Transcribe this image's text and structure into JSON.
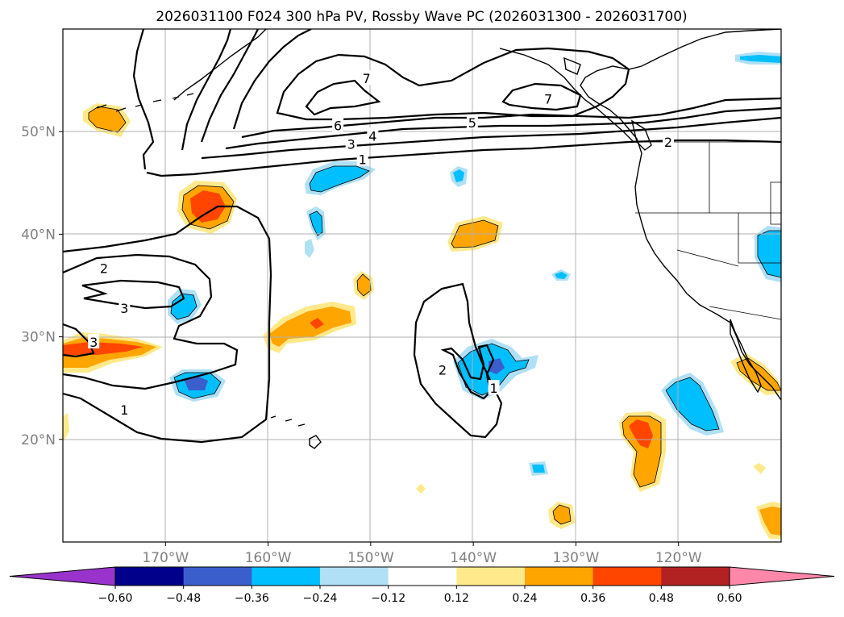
{
  "title": "2026031100 F024 300 hPa PV, Rossby Wave PC (2026031300 - 2026031700)",
  "chart_data": {
    "type": "contour-map",
    "projection": "PlateCarree",
    "lon_range": [
      -180,
      -110
    ],
    "lat_range": [
      10,
      60
    ],
    "x_ticks": [
      {
        "lon": -170,
        "label": "170°W"
      },
      {
        "lon": -160,
        "label": "160°W"
      },
      {
        "lon": -150,
        "label": "150°W"
      },
      {
        "lon": -140,
        "label": "140°W"
      },
      {
        "lon": -130,
        "label": "130°W"
      },
      {
        "lon": -120,
        "label": "120°W"
      }
    ],
    "y_ticks": [
      {
        "lat": 20,
        "label": "20°N"
      },
      {
        "lat": 30,
        "label": "30°N"
      },
      {
        "lat": 40,
        "label": "40°N"
      },
      {
        "lat": 50,
        "label": "50°N"
      }
    ],
    "colorbar": {
      "levels": [
        -0.6,
        -0.48,
        -0.36,
        -0.24,
        -0.12,
        0.12,
        0.24,
        0.36,
        0.48,
        0.6
      ],
      "tick_labels": [
        "−0.60",
        "−0.48",
        "−0.36",
        "−0.24",
        "−0.12",
        "0.12",
        "0.24",
        "0.36",
        "0.48",
        "0.60"
      ],
      "colors": [
        "#9933cc",
        "#00008b",
        "#3a5fcd",
        "#00bfff",
        "#b0e0f5",
        "#ffffff",
        "#ffe98a",
        "#ffa500",
        "#ff4500",
        "#b22222",
        "#ff88aa"
      ],
      "extend": "both"
    },
    "contour_labels": [
      {
        "text": "7",
        "lon": -150.4,
        "lat": 55.2
      },
      {
        "text": "7",
        "lon": -132.7,
        "lat": 53.2
      },
      {
        "text": "6",
        "lon": -153.2,
        "lat": 50.6
      },
      {
        "text": "5",
        "lon": -140.1,
        "lat": 50.9
      },
      {
        "text": "4",
        "lon": -149.8,
        "lat": 49.6
      },
      {
        "text": "3",
        "lon": -151.9,
        "lat": 48.8
      },
      {
        "text": "1",
        "lon": -150.8,
        "lat": 47.3
      },
      {
        "text": "2",
        "lon": -176.0,
        "lat": 36.7
      },
      {
        "text": "3",
        "lon": -174.0,
        "lat": 32.8
      },
      {
        "text": "3",
        "lon": -177.0,
        "lat": 29.5
      },
      {
        "text": "1",
        "lon": -174.0,
        "lat": 22.9
      },
      {
        "text": "2",
        "lon": -143.0,
        "lat": 26.8
      },
      {
        "text": "1",
        "lon": -138.0,
        "lat": 25.0
      },
      {
        "text": "2",
        "lon": -121.0,
        "lat": 49.0
      }
    ],
    "series": [
      {
        "name": "PV contour 1",
        "value": 1
      },
      {
        "name": "PV contour 2",
        "value": 2
      },
      {
        "name": "PV contour 3",
        "value": 3
      },
      {
        "name": "PV contour 4",
        "value": 4
      },
      {
        "name": "PV contour 5",
        "value": 5
      },
      {
        "name": "PV contour 6",
        "value": 6
      },
      {
        "name": "PV contour 7",
        "value": 7
      }
    ]
  }
}
